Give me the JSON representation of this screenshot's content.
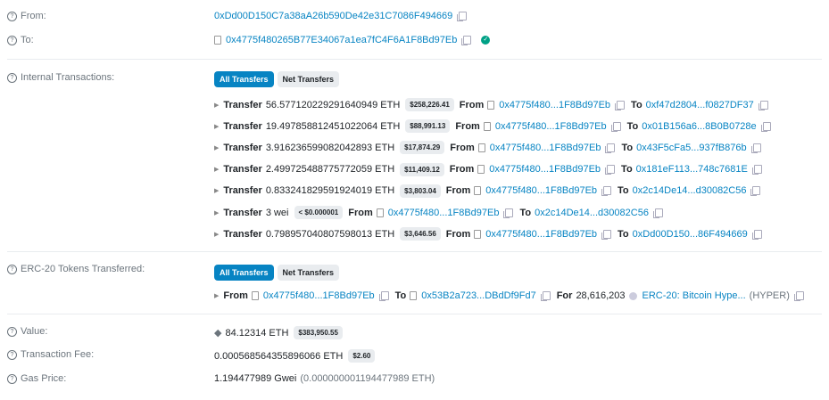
{
  "from": {
    "label": "From:",
    "address": "0xDd00D150C7a38aA26b590De42e31C7086F494669"
  },
  "to": {
    "label": "To:",
    "address": "0x4775f480265B77E34067a1ea7fC4F6A1F8Bd97Eb",
    "verified_icon": "check-circle-icon"
  },
  "internal": {
    "label": "Internal Transactions:",
    "tabs": [
      "All Transfers",
      "Net Transfers"
    ],
    "word_transfer": "Transfer",
    "word_from": "From",
    "word_to": "To",
    "rows": [
      {
        "amount": "56.577120229291640949 ETH",
        "usd": "$258,226.41",
        "from": "0x4775f480...1F8Bd97Eb",
        "to": "0xf47d2804...f0827DF37"
      },
      {
        "amount": "19.497858812451022064 ETH",
        "usd": "$88,991.13",
        "from": "0x4775f480...1F8Bd97Eb",
        "to": "0x01B156a6...8B0B0728e"
      },
      {
        "amount": "3.916236599082042893 ETH",
        "usd": "$17,874.29",
        "from": "0x4775f480...1F8Bd97Eb",
        "to": "0x43F5cFa5...937fB876b"
      },
      {
        "amount": "2.499725488775772059 ETH",
        "usd": "$11,409.12",
        "from": "0x4775f480...1F8Bd97Eb",
        "to": "0x181eF113...748c7681E"
      },
      {
        "amount": "0.833241829591924019 ETH",
        "usd": "$3,803.04",
        "from": "0x4775f480...1F8Bd97Eb",
        "to": "0x2c14De14...d30082C56"
      },
      {
        "amount": "3 wei",
        "usd": "< $0.000001",
        "from": "0x4775f480...1F8Bd97Eb",
        "to": "0x2c14De14...d30082C56"
      },
      {
        "amount": "0.798957040807598013 ETH",
        "usd": "$3,646.56",
        "from": "0x4775f480...1F8Bd97Eb",
        "to": "0xDd00D150...86F494669"
      }
    ]
  },
  "erc20": {
    "label": "ERC-20 Tokens Transferred:",
    "tabs": [
      "All Transfers",
      "Net Transfers"
    ],
    "row": {
      "from_word": "From",
      "from": "0x4775f480...1F8Bd97Eb",
      "to_word": "To",
      "to": "0x53B2a723...DBdDf9Fd7",
      "for_word": "For",
      "amount": "28,616,203",
      "token": "ERC-20: Bitcoin Hype...",
      "symbol": "(HYPER)"
    }
  },
  "value": {
    "label": "Value:",
    "amount": "84.12314 ETH",
    "usd": "$383,950.55"
  },
  "fee": {
    "label": "Transaction Fee:",
    "amount": "0.000568564355896066 ETH",
    "usd": "$2.60"
  },
  "gas": {
    "label": "Gas Price:",
    "gwei": "1.194477989 Gwei",
    "eth": "(0.000000001194477989 ETH)"
  },
  "colors": {
    "link": "#0784c3",
    "active_tab": "#0784c3",
    "verified": "#00a186"
  }
}
